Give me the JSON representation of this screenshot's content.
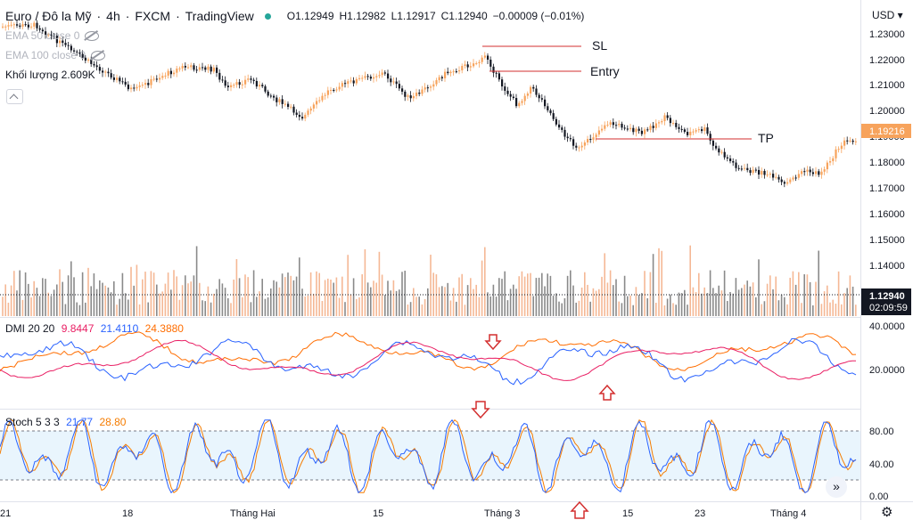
{
  "header": {
    "symbol": "Euro / Đô la Mỹ",
    "interval": "4h",
    "exchange": "FXCM",
    "platform": "TradingView",
    "open": "O1.12949",
    "high": "H1.12982",
    "low": "L1.12917",
    "close": "C1.12940",
    "change": "−0.00009 (−0.01%)"
  },
  "indicators": {
    "ema1": "EMA 50 close 0",
    "ema2": "EMA 100 close 0",
    "volume_label": "Khối lượng",
    "volume_value": "2.609K"
  },
  "currency": "USD",
  "price_axis": [
    "1.23000",
    "1.22000",
    "1.21000",
    "1.20000",
    "1.19000",
    "1.18000",
    "1.17000",
    "1.16000",
    "1.15000",
    "1.14000",
    "1.13000"
  ],
  "price_badges": {
    "last": "1.19216",
    "current": "1.12940",
    "countdown": "02:09:59"
  },
  "annotations": {
    "sl": "SL",
    "entry": "Entry",
    "tp": "TP"
  },
  "dmi": {
    "title": "DMI 20 20",
    "v1": "9.8447",
    "v2": "21.4110",
    "v3": "24.3880",
    "axis": [
      "40.0000",
      "20.0000"
    ]
  },
  "stoch": {
    "title": "Stoch 5 3 3",
    "k": "21.77",
    "d": "28.80",
    "axis": [
      "80.00",
      "40.00",
      "0.00"
    ]
  },
  "time_axis": [
    "21",
    "18",
    "Tháng Hai",
    "15",
    "Tháng 3",
    "15",
    "23",
    "Tháng 4"
  ],
  "colors": {
    "up": "#f7a35c",
    "down": "#131722",
    "plus_di": "#2962ff",
    "minus_di": "#e91e63",
    "adx": "#ff6d00",
    "stoch_k": "#2962ff",
    "stoch_d": "#f57c00",
    "band": "#e3f2fd",
    "annotation_line": "#d32f2f",
    "arrow": "#d32f2f"
  },
  "icons": {
    "visibility_off": "eye-off-icon",
    "collapse": "chevron-up-icon",
    "scroll": "double-chevron-right-icon",
    "settings": "gear-icon",
    "arrow_down": "arrow-down-icon",
    "arrow_up": "arrow-up-icon"
  }
}
